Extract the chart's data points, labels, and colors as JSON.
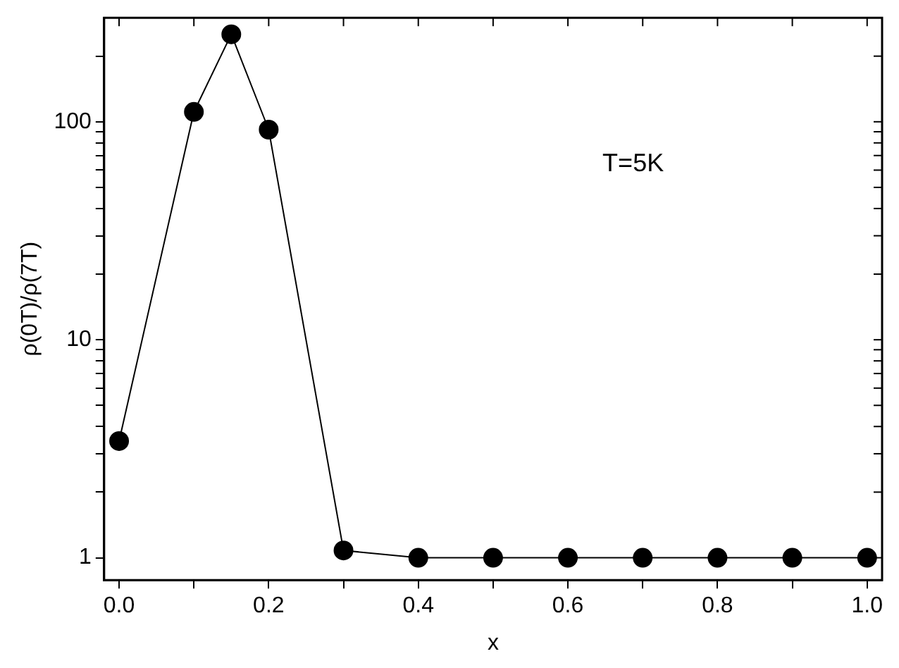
{
  "chart_data": {
    "type": "line",
    "xlabel": "x",
    "ylabel": "ρ(0T)/ρ(7T)",
    "x": [
      0,
      0.1,
      0.15,
      0.2,
      0.3,
      0.4,
      0.5,
      0.6,
      0.7,
      0.8,
      0.9,
      1.0
    ],
    "series": [
      {
        "color": "#000000",
        "values": [
          3.43,
          111,
          252,
          92,
          1.08,
          1,
          1,
          1,
          1,
          1,
          1,
          1
        ]
      }
    ],
    "log": "y",
    "marker": "circle",
    "line_style": "solid",
    "grid": false,
    "legend": false,
    "xlim": [
      -0.02,
      1.02
    ],
    "xticks": [
      {
        "value": 0,
        "label": "0.0"
      },
      {
        "value": 0.1,
        "label": null
      },
      0.2,
      {
        "value": 0.3,
        "label": null
      },
      0.4,
      {
        "value": 0.5,
        "label": null
      },
      0.6,
      {
        "value": 0.7,
        "label": null
      },
      0.8,
      {
        "value": 0.9,
        "label": null
      },
      {
        "value": 1,
        "label": "1.0"
      }
    ],
    "ylim": [
      0.79,
      300
    ],
    "yticks": [
      1,
      {
        "value": 2,
        "label": null
      },
      {
        "value": 3,
        "label": null
      },
      {
        "value": 4,
        "label": null
      },
      {
        "value": 5,
        "label": null
      },
      {
        "value": 6,
        "label": null
      },
      {
        "value": 7,
        "label": null
      },
      {
        "value": 8,
        "label": null
      },
      {
        "value": 9,
        "label": null
      },
      10,
      {
        "value": 20,
        "label": null
      },
      {
        "value": 30,
        "label": null
      },
      {
        "value": 40,
        "label": null
      },
      {
        "value": 50,
        "label": null
      },
      {
        "value": 60,
        "label": null
      },
      {
        "value": 70,
        "label": null
      },
      {
        "value": 80,
        "label": null
      },
      {
        "value": 90,
        "label": null
      },
      100,
      {
        "value": 200,
        "label": null
      }
    ],
    "annotations": [
      "T=5K"
    ]
  }
}
